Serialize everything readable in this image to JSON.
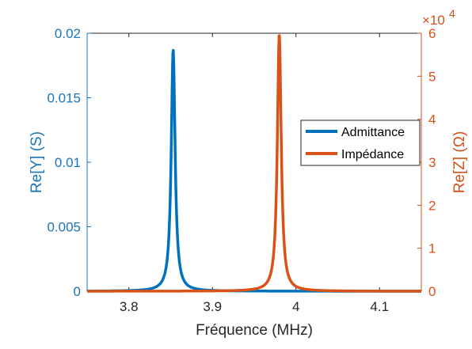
{
  "colors": {
    "left_axis": "#1a75b9",
    "right_axis": "#d6501a",
    "x_axis": "#262626",
    "admittance": "#0072bd",
    "impedance": "#d95319"
  },
  "chart_data": {
    "type": "line",
    "xlabel": "Fréquence (MHz)",
    "ylabel_left": "Re[Y] (S)",
    "ylabel_right": "Re[Z] (Ω)",
    "right_exponent": {
      "base": "×10",
      "power": "4"
    },
    "xlim": [
      3.75,
      4.15
    ],
    "ylim_left": [
      0,
      0.02
    ],
    "ylim_right": [
      0,
      6
    ],
    "x_ticks": [
      "3.8",
      "3.9",
      "4",
      "4.1"
    ],
    "y_left_ticks": [
      "0",
      "0.005",
      "0.01",
      "0.015",
      "0.02"
    ],
    "y_right_ticks": [
      "0",
      "1",
      "2",
      "3",
      "4",
      "5",
      "6"
    ],
    "grid": false,
    "legend_placement": "right",
    "series": [
      {
        "name": "Admittance",
        "axis": "left",
        "center": 3.853,
        "peak": 0.0187,
        "halfwidth": 0.0028
      },
      {
        "name": "Impédance",
        "axis": "right",
        "center": 3.98,
        "peak": 5.98,
        "halfwidth": 0.0028
      }
    ]
  }
}
